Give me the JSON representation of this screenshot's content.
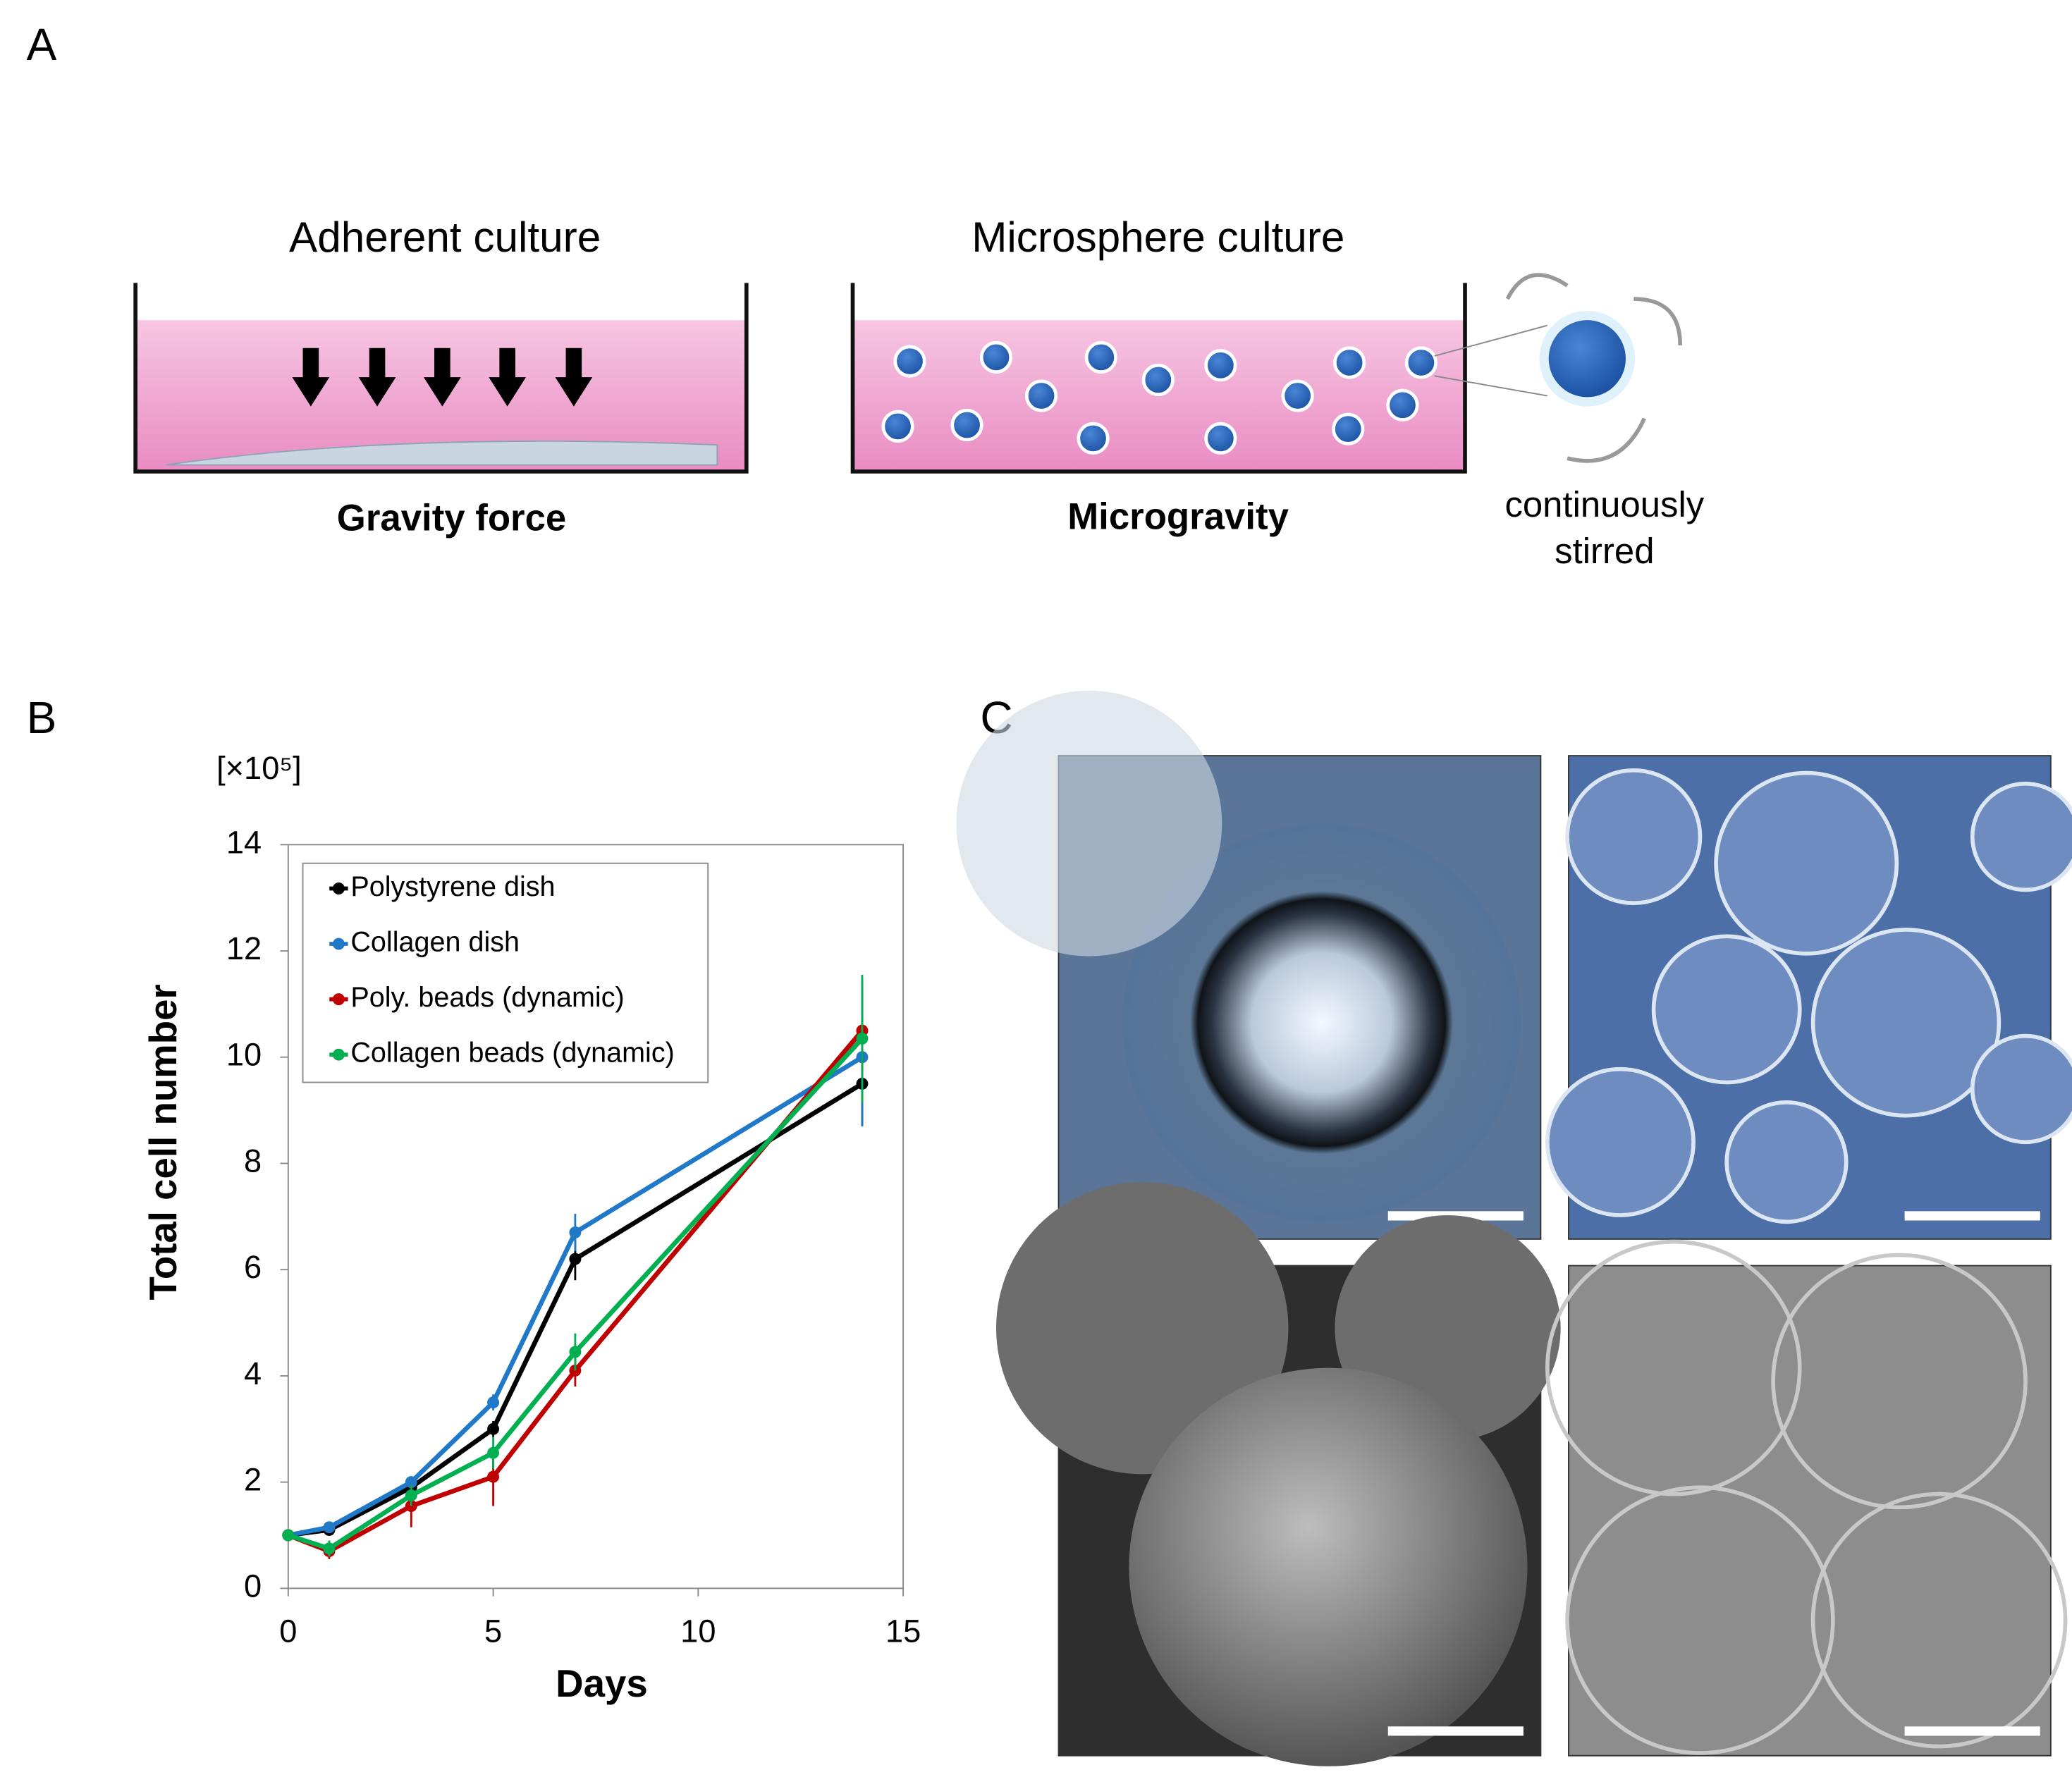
{
  "panels": {
    "a": {
      "label": "A",
      "left": {
        "title": "Adherent culture",
        "caption": "Gravity force"
      },
      "right": {
        "title": "Microsphere culture",
        "caption": "Microgravity",
        "note": [
          "continuously",
          "stirred"
        ]
      }
    },
    "b": {
      "label": "B"
    },
    "c": {
      "label": "C"
    }
  },
  "chart_data": {
    "type": "line",
    "ylabel": "Total cell number",
    "xlabel": "Days",
    "y_unit": "[×10⁵]",
    "x": [
      0,
      1,
      3,
      5,
      7,
      14
    ],
    "series": [
      {
        "name": "Polystyrene dish",
        "color": "#000000",
        "values": [
          1.0,
          1.1,
          1.9,
          3.0,
          6.2,
          9.5
        ],
        "errors": [
          0.05,
          0.1,
          0.1,
          0.15,
          0.4,
          0.8
        ]
      },
      {
        "name": "Collagen dish",
        "color": "#1f78c8",
        "values": [
          1.0,
          1.15,
          2.0,
          3.5,
          6.7,
          10.0
        ],
        "errors": [
          0.05,
          0.1,
          0.1,
          0.15,
          0.35,
          1.3
        ]
      },
      {
        "name": "Poly. beads (dynamic)",
        "color": "#c00000",
        "values": [
          1.0,
          0.7,
          1.55,
          2.1,
          4.1,
          10.5
        ],
        "errors": [
          0.05,
          0.15,
          0.4,
          0.55,
          0.3,
          1.0
        ]
      },
      {
        "name": "Collagen beads (dynamic)",
        "color": "#00b050",
        "values": [
          1.0,
          0.75,
          1.75,
          2.55,
          4.45,
          10.35
        ],
        "errors": [
          0.05,
          0.15,
          0.2,
          0.3,
          0.35,
          1.2
        ]
      }
    ],
    "xlim": [
      0,
      15
    ],
    "xticks": [
      0,
      5,
      10,
      15
    ],
    "ylim": [
      0,
      14
    ],
    "yticks": [
      0,
      2,
      4,
      6,
      8,
      10,
      12,
      14
    ],
    "legend": "upper-left"
  }
}
